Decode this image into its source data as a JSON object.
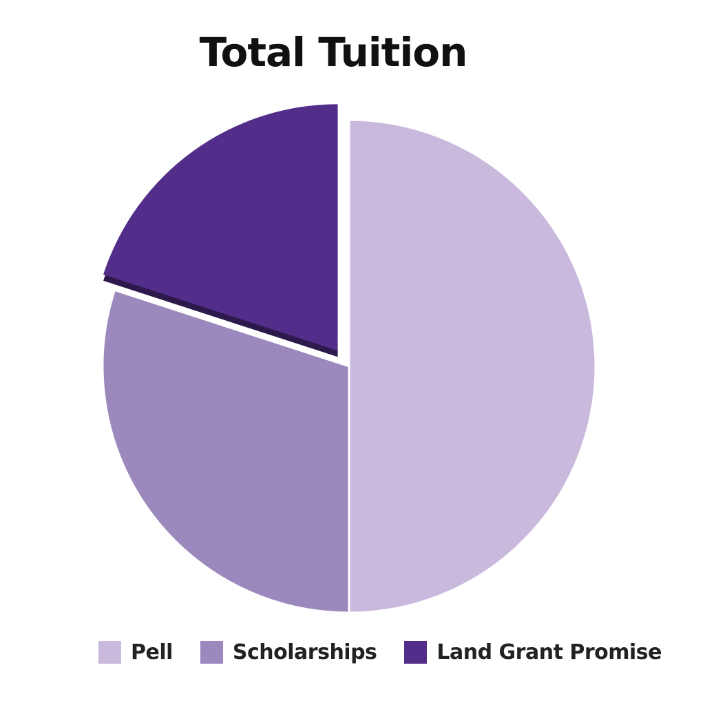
{
  "chart_data": {
    "type": "pie",
    "title": "Total Tuition",
    "categories": [
      "Pell",
      "Scholarships",
      "Land Grant Promise"
    ],
    "values": [
      50,
      30,
      20
    ],
    "colors": [
      "#c9b9dc",
      "#9b89bd",
      "#522d89"
    ],
    "exploded": [
      "Land Grant Promise"
    ],
    "legend_position": "bottom"
  }
}
